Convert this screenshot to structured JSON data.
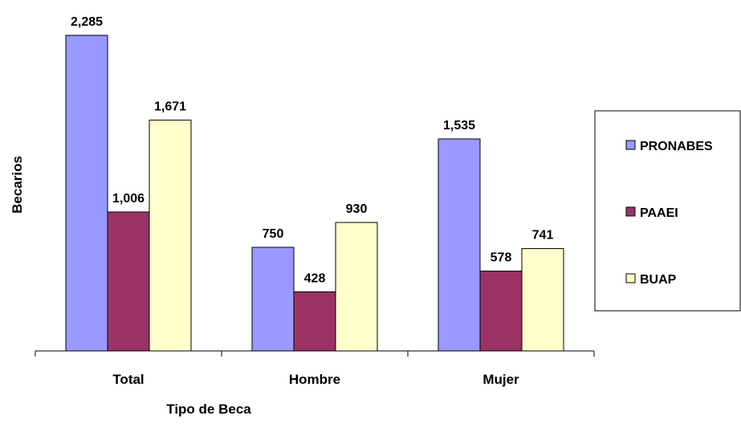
{
  "chart_data": {
    "type": "bar",
    "categories": [
      "Total",
      "Hombre",
      "Mujer"
    ],
    "series": [
      {
        "name": "PRONABES",
        "values": [
          2285,
          750,
          1535
        ],
        "value_labels": [
          "2,285",
          "750",
          "1,535"
        ]
      },
      {
        "name": "PAAEI",
        "values": [
          1006,
          428,
          578
        ],
        "value_labels": [
          "1,006",
          "428",
          "578"
        ]
      },
      {
        "name": "BUAP",
        "values": [
          1671,
          930,
          741
        ],
        "value_labels": [
          "1,671",
          "930",
          "741"
        ]
      }
    ],
    "colors": [
      "#9999FF",
      "#993366",
      "#FFFFCC"
    ],
    "xlabel": "Tipo de Beca",
    "ylabel": "Becarios",
    "ylim": [
      0,
      2285
    ],
    "grid": false,
    "legend_position": "right"
  }
}
